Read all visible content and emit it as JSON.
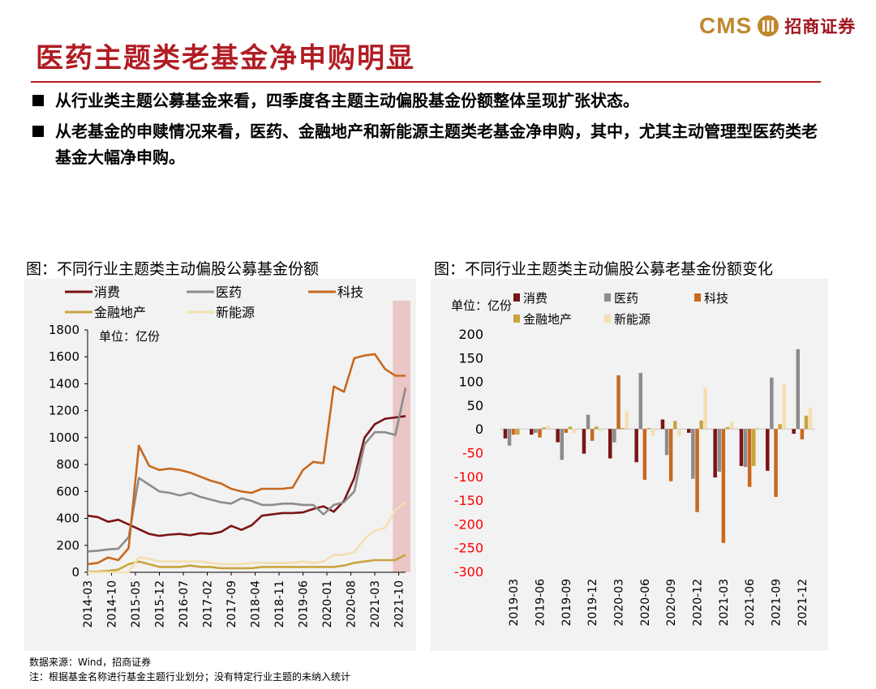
{
  "header": {
    "logo_cms": "CMS",
    "logo_cn": "招商证券",
    "title": "医药主题类老基金净申购明显"
  },
  "bullets": [
    "从行业类主题公募基金来看，四季度各主题主动偏股基金份额整体呈现扩张状态。",
    "从老基金的申赎情况来看，医药、金融地产和新能源主题类老基金净申购，其中，尤其主动管理型医药类老基金大幅净申购。"
  ],
  "colors": {
    "brand_red": "#b01d23",
    "brand_gold": "#c0872e",
    "consumption": "#7b1416",
    "pharma": "#8c8c8c",
    "tech": "#c8691e",
    "finance": "#c9a43e",
    "newenergy": "#f3dfb0",
    "highlight": "#e7b7b7",
    "neg_tick": "#ff0000"
  },
  "footer": {
    "source": "数据来源：Wind，招商证券",
    "note": "注：根据基金名称进行基金主题行业划分；没有特定行业主题的未纳入统计"
  },
  "chart_data": [
    {
      "type": "line",
      "title": "图：不同行业主题类主动偏股公募基金份额",
      "unit_label": "单位：亿份",
      "ylim": [
        0,
        1800
      ],
      "yticks": [
        "0",
        "200",
        "400",
        "600",
        "800",
        "1000",
        "1200",
        "1400",
        "1600",
        "1800"
      ],
      "xtick_labels": [
        "2014-03",
        "2014-10",
        "2015-05",
        "2015-12",
        "2016-07",
        "2017-02",
        "2017-09",
        "2018-04",
        "2018-11",
        "2019-06",
        "2020-01",
        "2020-08",
        "2021-03",
        "2021-10"
      ],
      "highlight_label": "2021-Q3 to 2021-Q4",
      "legend": [
        "消费",
        "医药",
        "科技",
        "金融地产",
        "新能源"
      ],
      "x": [
        "2014Q1",
        "2014Q2",
        "2014Q3",
        "2014Q4",
        "2015Q1",
        "2015Q2",
        "2015Q3",
        "2015Q4",
        "2016Q1",
        "2016Q2",
        "2016Q3",
        "2016Q4",
        "2017Q1",
        "2017Q2",
        "2017Q3",
        "2017Q4",
        "2018Q1",
        "2018Q2",
        "2018Q3",
        "2018Q4",
        "2019Q1",
        "2019Q2",
        "2019Q3",
        "2019Q4",
        "2020Q1",
        "2020Q2",
        "2020Q3",
        "2020Q4",
        "2021Q1",
        "2021Q2",
        "2021Q3",
        "2021Q4"
      ],
      "series": [
        {
          "name": "消费",
          "values": [
            420,
            410,
            375,
            390,
            355,
            320,
            285,
            270,
            280,
            285,
            275,
            290,
            285,
            300,
            345,
            315,
            350,
            420,
            430,
            440,
            440,
            445,
            470,
            490,
            450,
            530,
            700,
            1000,
            1100,
            1140,
            1150,
            1160
          ]
        },
        {
          "name": "医药",
          "values": [
            155,
            160,
            170,
            175,
            260,
            700,
            650,
            600,
            590,
            570,
            590,
            560,
            540,
            520,
            510,
            550,
            530,
            500,
            500,
            510,
            510,
            500,
            500,
            430,
            500,
            520,
            600,
            950,
            1040,
            1040,
            1020,
            1370
          ]
        },
        {
          "name": "科技",
          "values": [
            60,
            70,
            110,
            90,
            180,
            940,
            790,
            760,
            770,
            760,
            740,
            710,
            680,
            660,
            620,
            600,
            590,
            620,
            620,
            620,
            630,
            760,
            820,
            810,
            1380,
            1340,
            1590,
            1610,
            1620,
            1510,
            1460,
            1460
          ]
        },
        {
          "name": "金融地产",
          "values": [
            5,
            5,
            10,
            20,
            60,
            80,
            60,
            40,
            40,
            40,
            50,
            40,
            40,
            30,
            30,
            30,
            30,
            40,
            40,
            40,
            40,
            40,
            40,
            40,
            40,
            50,
            70,
            80,
            90,
            90,
            90,
            130
          ]
        },
        {
          "name": "新能源",
          "values": [
            0,
            0,
            0,
            0,
            0,
            110,
            100,
            80,
            80,
            80,
            80,
            80,
            70,
            60,
            60,
            60,
            70,
            70,
            70,
            70,
            70,
            80,
            70,
            80,
            130,
            130,
            150,
            250,
            310,
            330,
            460,
            520
          ]
        }
      ]
    },
    {
      "type": "bar",
      "title": "图：不同行业主题类主动偏股公募老基金份额变化",
      "unit_label": "单位：亿份",
      "ylim": [
        -300,
        200
      ],
      "yticks": [
        "200",
        "150",
        "100",
        "50",
        "0",
        "-50",
        "-100",
        "-150",
        "-200",
        "-250",
        "-300"
      ],
      "categories": [
        "2019-03",
        "2019-06",
        "2019-09",
        "2019-12",
        "2020-03",
        "2020-06",
        "2020-09",
        "2020-12",
        "2021-03",
        "2021-06",
        "2021-09",
        "2021-12"
      ],
      "legend": [
        "消费",
        "医药",
        "科技",
        "金融地产",
        "新能源"
      ],
      "series": [
        {
          "name": "消费",
          "values": [
            -20,
            -12,
            -28,
            -52,
            -62,
            -70,
            20,
            -8,
            -102,
            -78,
            -88,
            -10
          ]
        },
        {
          "name": "医药",
          "values": [
            -35,
            -8,
            -65,
            30,
            -28,
            118,
            -55,
            -105,
            -90,
            -80,
            108,
            168
          ]
        },
        {
          "name": "科技",
          "values": [
            -12,
            -18,
            -8,
            -25,
            113,
            -107,
            -110,
            -175,
            -240,
            -122,
            -143,
            -22
          ]
        },
        {
          "name": "金融地产",
          "values": [
            -12,
            3,
            5,
            5,
            2,
            2,
            17,
            18,
            4,
            -78,
            10,
            28
          ]
        },
        {
          "name": "新能源",
          "values": [
            0,
            7,
            -8,
            -5,
            37,
            -15,
            -15,
            87,
            15,
            3,
            95,
            45
          ]
        }
      ]
    }
  ]
}
